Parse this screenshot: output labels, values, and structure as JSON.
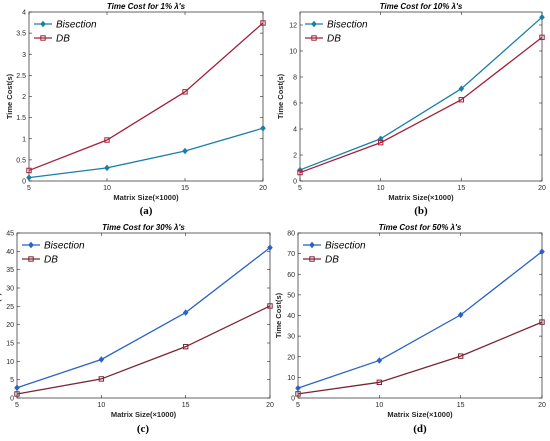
{
  "colors": {
    "bisection": "#1a7fa8",
    "db": "#a3203b",
    "bisection_bottom": "#2a62c6",
    "db_bottom": "#7a2636"
  },
  "chart_data": [
    {
      "type": "line",
      "title": "Time Cost for 1% λ's",
      "xlabel": "Matrix Size(×1000)",
      "ylabel": "Time Cost(s)",
      "x": [
        5,
        10,
        15,
        20
      ],
      "xlim": [
        5,
        20
      ],
      "ylim": [
        0,
        4
      ],
      "yticks": [
        0,
        0.5,
        1,
        1.5,
        2,
        2.5,
        3,
        3.5,
        4
      ],
      "legend_position": "top-left",
      "caption": "(a)",
      "series": [
        {
          "name": "Bisection",
          "values": [
            0.08,
            0.31,
            0.71,
            1.25
          ],
          "marker": "diamond"
        },
        {
          "name": "DB",
          "values": [
            0.25,
            0.97,
            2.11,
            3.74
          ],
          "marker": "square"
        }
      ]
    },
    {
      "type": "line",
      "title": "Time Cost for 10% λ's",
      "xlabel": "Matrix Size(×1000)",
      "ylabel": "Time Cost(s)",
      "x": [
        5,
        10,
        15,
        20
      ],
      "xlim": [
        5,
        20
      ],
      "ylim": [
        0,
        13
      ],
      "yticks": [
        0,
        2,
        4,
        6,
        8,
        10,
        12
      ],
      "legend_position": "top-left",
      "caption": "(b)",
      "series": [
        {
          "name": "Bisection",
          "values": [
            0.85,
            3.25,
            7.1,
            12.6
          ],
          "marker": "diamond"
        },
        {
          "name": "DB",
          "values": [
            0.65,
            2.95,
            6.25,
            11.05
          ],
          "marker": "square"
        }
      ]
    },
    {
      "type": "line",
      "title": "Time Cost for 30% λ's",
      "xlabel": "Matrix Size(×1000)",
      "ylabel": "Time Cost(s)",
      "x": [
        5,
        10,
        15,
        20
      ],
      "xlim": [
        5,
        20
      ],
      "ylim": [
        0,
        45
      ],
      "yticks": [
        0,
        5,
        10,
        15,
        20,
        25,
        30,
        35,
        40,
        45
      ],
      "legend_position": "top-left",
      "caption": "(c)",
      "series": [
        {
          "name": "Bisection",
          "values": [
            2.8,
            10.5,
            23.3,
            41
          ],
          "marker": "diamond"
        },
        {
          "name": "DB",
          "values": [
            1.1,
            5.2,
            14,
            25.1
          ],
          "marker": "square"
        }
      ]
    },
    {
      "type": "line",
      "title": "Time Cost for 50% λ's",
      "xlabel": "Matrix Size(×1000)",
      "ylabel": "Time Cost(s)",
      "x": [
        5,
        10,
        15,
        20
      ],
      "xlim": [
        5,
        20
      ],
      "ylim": [
        0,
        80
      ],
      "yticks": [
        0,
        10,
        20,
        30,
        40,
        50,
        60,
        70,
        80
      ],
      "legend_position": "top-left",
      "caption": "(d)",
      "series": [
        {
          "name": "Bisection",
          "values": [
            4.8,
            18.2,
            40.3,
            71
          ],
          "marker": "diamond"
        },
        {
          "name": "DB",
          "values": [
            2,
            7.6,
            20.3,
            36.8
          ],
          "marker": "square"
        }
      ]
    }
  ]
}
